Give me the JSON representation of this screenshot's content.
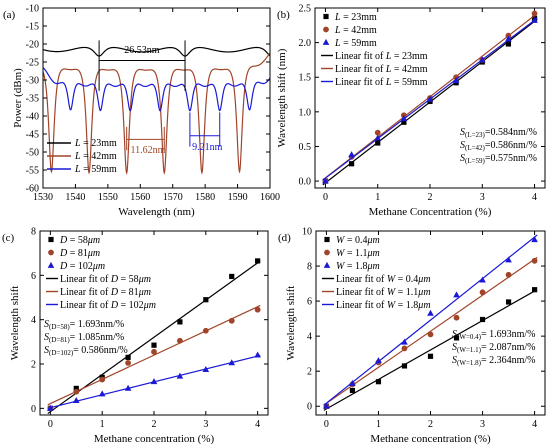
{
  "chart_data": [
    {
      "id": "a",
      "type": "line",
      "panel_label": "(a)",
      "xlabel": "Wavelength (nm)",
      "ylabel": "Power (dBm)",
      "xlim": [
        1530,
        1600
      ],
      "ylim": [
        -60,
        -10
      ],
      "xticks": [
        1530,
        1540,
        1550,
        1560,
        1570,
        1580,
        1590,
        1600
      ],
      "yticks": [
        -60,
        -55,
        -50,
        -45,
        -40,
        -35,
        -30,
        -25,
        -20,
        -15,
        -10
      ],
      "legend_position": "lower-left",
      "series": [
        {
          "name_prefix": "L",
          "name_value": "= 23mm",
          "color": "#000000",
          "baseline": -20.8,
          "fsr": 26.53,
          "dips": [
            1547.3,
            1573.8,
            1600.4
          ],
          "dip_depth": -24.5,
          "dip_width": 2.2
        },
        {
          "name_prefix": "L",
          "name_value": "= 42mm",
          "color": "#a0452a",
          "baseline": -22.5,
          "fsr": 11.62,
          "dips": [
            1532.6,
            1544.2,
            1555.8,
            1567.4,
            1579.0,
            1590.6
          ],
          "dip_depth": -57.0,
          "dip_width": 1.1
        },
        {
          "name_prefix": "L",
          "name_value": "= 59mm",
          "color": "#1a1ad6",
          "baseline": -28.0,
          "fsr": 9.21,
          "dips": [
            1538.5,
            1547.7,
            1556.9,
            1566.1,
            1575.3,
            1584.5,
            1593.7
          ],
          "dip_depth": -40.0,
          "dip_width": 1.2
        }
      ],
      "annotations": {
        "fsr_black": "26.53nm",
        "fsr_brown": "11.62nm",
        "fsr_blue": "9.21nm"
      }
    },
    {
      "id": "b",
      "type": "scatter",
      "panel_label": "(b)",
      "xlabel": "Methane Concentration (%)",
      "ylabel": "Wavelength shift (nm)",
      "xlim": [
        -0.2,
        4.2
      ],
      "ylim": [
        -0.1,
        2.5
      ],
      "xticks": [
        0,
        1,
        2,
        3,
        4
      ],
      "yticks": [
        0.0,
        0.5,
        1.0,
        1.5,
        2.0,
        2.5
      ],
      "legend_position": "top-left",
      "x": [
        0,
        0.5,
        1,
        1.5,
        2,
        2.5,
        3,
        3.5,
        4
      ],
      "series": [
        {
          "name_prefix": "L",
          "name_value": "= 23mm",
          "fit_label_prefix": "Linear fit of ",
          "fit_label_suffix": " = 23mm",
          "color": "#000000",
          "marker": "square",
          "values": [
            0.0,
            0.25,
            0.55,
            0.85,
            1.15,
            1.42,
            1.72,
            1.98,
            2.35
          ],
          "slope": 0.584,
          "sens_sub": "(L=23)",
          "sens_val": "=0.584nm/%"
        },
        {
          "name_prefix": "L",
          "name_value": "= 42mm",
          "fit_label_prefix": "Linear fit of ",
          "fit_label_suffix": " = 42mm",
          "color": "#a0452a",
          "marker": "circle",
          "values": [
            0.0,
            0.35,
            0.7,
            0.95,
            1.2,
            1.5,
            1.75,
            2.1,
            2.42
          ],
          "slope": 0.586,
          "sens_sub": "(L=42)",
          "sens_val": "=0.586nm/%"
        },
        {
          "name_prefix": "L",
          "name_value": "= 59mm",
          "fit_label_prefix": "Linear fit of ",
          "fit_label_suffix": " = 59mm",
          "color": "#1a1ad6",
          "marker": "triangle",
          "values": [
            0.0,
            0.38,
            0.62,
            0.9,
            1.18,
            1.45,
            1.75,
            2.05,
            2.32
          ],
          "slope": 0.575,
          "sens_sub": "(L=59)",
          "sens_val": "=0.575nm/%"
        }
      ]
    },
    {
      "id": "c",
      "type": "scatter",
      "panel_label": "(c)",
      "xlabel": "Methane concentration (%)",
      "ylabel": "Wavelength shift",
      "xlim": [
        -0.2,
        4.2
      ],
      "ylim": [
        -0.3,
        8
      ],
      "xticks": [
        0,
        1,
        2,
        3,
        4
      ],
      "yticks": [
        0,
        2,
        4,
        6,
        8
      ],
      "legend_position": "top-left",
      "x": [
        0,
        0.5,
        1,
        1.5,
        2,
        2.5,
        3,
        3.5,
        4
      ],
      "series": [
        {
          "name_prefix": "D",
          "name_value": "= 58",
          "unit": "μm",
          "fit_label_prefix": "Linear fit of ",
          "color": "#000000",
          "marker": "square",
          "values": [
            0.0,
            0.9,
            1.4,
            2.3,
            2.85,
            3.9,
            4.9,
            5.95,
            6.65
          ],
          "slope": 1.693,
          "sens_sub": "(D=58)",
          "sens_val": "= 1.693nm/%"
        },
        {
          "name_prefix": "D",
          "name_value": "= 81",
          "unit": "μm",
          "fit_label_prefix": "Linear fit of ",
          "color": "#a0452a",
          "marker": "circle",
          "values": [
            0.0,
            0.75,
            1.3,
            2.05,
            2.55,
            3.05,
            3.5,
            3.95,
            4.45
          ],
          "slope": 1.085,
          "sens_sub": "(D=81)",
          "sens_val": "= 1.085nm/%"
        },
        {
          "name_prefix": "D",
          "name_value": "= 102",
          "unit": "μm",
          "fit_label_prefix": "Linear fit of ",
          "color": "#1a1ad6",
          "marker": "triangle",
          "values": [
            0.0,
            0.35,
            0.65,
            0.9,
            1.2,
            1.45,
            1.75,
            2.05,
            2.4
          ],
          "slope": 0.586,
          "sens_sub": "(D=102)",
          "sens_val": "= 0.586nm/%"
        }
      ]
    },
    {
      "id": "d",
      "type": "scatter",
      "panel_label": "(d)",
      "xlabel": "Methane concentration (%)",
      "ylabel": "Wavelength shift",
      "xlim": [
        -0.2,
        4.2
      ],
      "ylim": [
        -0.5,
        10
      ],
      "xticks": [
        0,
        1,
        2,
        3,
        4
      ],
      "yticks": [
        0,
        2,
        4,
        6,
        8,
        10
      ],
      "legend_position": "top-left",
      "x": [
        0,
        0.5,
        1,
        1.5,
        2,
        2.5,
        3,
        3.5,
        4
      ],
      "series": [
        {
          "name_prefix": "W",
          "name_value": "= 0.4",
          "unit": "μm",
          "fit_label_prefix": "Linear fit of ",
          "color": "#000000",
          "marker": "square",
          "values": [
            0.0,
            0.9,
            1.4,
            2.3,
            2.85,
            3.9,
            4.95,
            5.95,
            6.65
          ],
          "slope": 1.693,
          "sens_sub": "(W=0.4)",
          "sens_val": "= 1.693nm/%"
        },
        {
          "name_prefix": "W",
          "name_value": "= 1.1",
          "unit": "μm",
          "fit_label_prefix": "Linear fit of ",
          "color": "#a0452a",
          "marker": "circle",
          "values": [
            0.0,
            1.25,
            2.5,
            3.3,
            4.1,
            5.05,
            6.5,
            7.5,
            8.3
          ],
          "slope": 2.087,
          "sens_sub": "(W=1.1)",
          "sens_val": "= 2.087nm/%"
        },
        {
          "name_prefix": "W",
          "name_value": "= 1.8",
          "unit": "μm",
          "fit_label_prefix": "Linear fit of ",
          "color": "#1a1ad6",
          "marker": "triangle",
          "values": [
            0.0,
            1.3,
            2.6,
            3.65,
            5.3,
            6.35,
            7.2,
            8.35,
            9.5
          ],
          "slope": 2.364,
          "sens_sub": "(W=1.8)",
          "sens_val": "= 2.364nm/%"
        }
      ]
    }
  ]
}
